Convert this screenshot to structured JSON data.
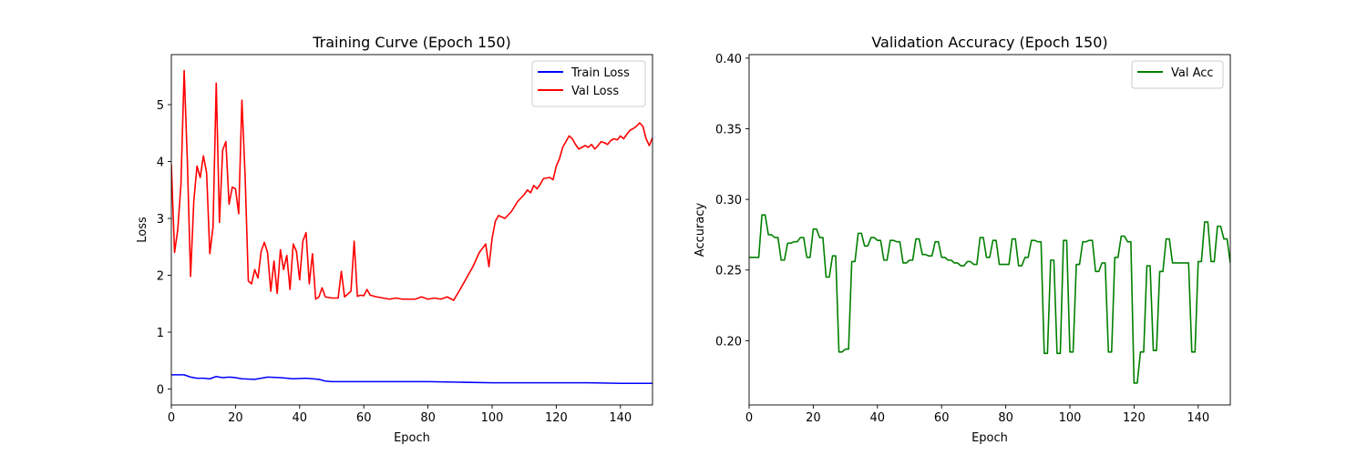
{
  "colors": {
    "train_loss": "#0000ff",
    "val_loss": "#ff0000",
    "val_acc": "#008000",
    "axes": "#000000",
    "legend_border": "#cccccc"
  },
  "chart_data": [
    {
      "type": "line",
      "title": "Training Curve (Epoch 150)",
      "xlabel": "Epoch",
      "ylabel": "Loss",
      "xlim": [
        0,
        150
      ],
      "ylim": [
        -0.28,
        5.88
      ],
      "xticks": [
        0,
        20,
        40,
        60,
        80,
        100,
        120,
        140
      ],
      "yticks": [
        0,
        1,
        2,
        3,
        4,
        5
      ],
      "grid": false,
      "legend": "top-right",
      "series": [
        {
          "name": "Train Loss",
          "color": "#0000ff",
          "x": [
            0,
            4,
            6,
            8,
            10,
            12,
            14,
            16,
            18,
            20,
            22,
            26,
            30,
            34,
            38,
            42,
            46,
            48,
            50,
            54,
            60,
            70,
            80,
            90,
            100,
            110,
            120,
            130,
            140,
            150
          ],
          "y": [
            0.25,
            0.25,
            0.21,
            0.19,
            0.19,
            0.18,
            0.22,
            0.2,
            0.21,
            0.2,
            0.18,
            0.17,
            0.21,
            0.2,
            0.18,
            0.19,
            0.17,
            0.14,
            0.13,
            0.13,
            0.13,
            0.13,
            0.13,
            0.12,
            0.11,
            0.11,
            0.11,
            0.11,
            0.1,
            0.1
          ]
        },
        {
          "name": "Val Loss",
          "color": "#ff0000",
          "x": [
            0,
            1,
            2,
            3,
            4,
            5,
            6,
            7,
            8,
            9,
            10,
            11,
            12,
            13,
            14,
            15,
            16,
            17,
            18,
            19,
            20,
            21,
            22,
            23,
            24,
            25,
            26,
            27,
            28,
            29,
            30,
            31,
            32,
            33,
            34,
            35,
            36,
            37,
            38,
            39,
            40,
            41,
            42,
            43,
            44,
            45,
            46,
            47,
            48,
            50,
            52,
            53,
            54,
            56,
            57,
            58,
            59,
            60,
            61,
            62,
            64,
            66,
            68,
            70,
            72,
            74,
            76,
            78,
            80,
            82,
            84,
            86,
            88,
            90,
            92,
            94,
            96,
            98,
            99,
            100,
            101,
            102,
            104,
            106,
            108,
            110,
            111,
            112,
            113,
            114,
            115,
            116,
            118,
            119,
            120,
            121,
            122,
            123,
            124,
            125,
            126,
            127,
            128,
            129,
            130,
            131,
            132,
            133,
            134,
            135,
            136,
            137,
            138,
            139,
            140,
            141,
            142,
            143,
            144,
            145,
            146,
            147,
            148,
            149,
            150
          ],
          "y": [
            3.95,
            2.4,
            2.8,
            3.6,
            5.6,
            4.0,
            1.98,
            3.3,
            3.92,
            3.72,
            4.1,
            3.8,
            2.38,
            2.85,
            5.38,
            2.93,
            4.2,
            4.35,
            3.25,
            3.55,
            3.52,
            3.08,
            5.08,
            3.75,
            1.9,
            1.85,
            2.1,
            1.95,
            2.42,
            2.58,
            2.4,
            1.72,
            2.25,
            1.68,
            2.45,
            2.1,
            2.35,
            1.75,
            2.55,
            2.42,
            1.92,
            2.6,
            2.75,
            1.85,
            2.38,
            1.58,
            1.62,
            1.78,
            1.62,
            1.6,
            1.6,
            2.07,
            1.62,
            1.72,
            2.6,
            1.63,
            1.65,
            1.64,
            1.75,
            1.65,
            1.62,
            1.6,
            1.58,
            1.6,
            1.58,
            1.58,
            1.58,
            1.62,
            1.58,
            1.6,
            1.58,
            1.62,
            1.56,
            1.75,
            1.95,
            2.15,
            2.4,
            2.55,
            2.15,
            2.65,
            2.95,
            3.05,
            3.0,
            3.12,
            3.3,
            3.42,
            3.5,
            3.45,
            3.58,
            3.52,
            3.6,
            3.7,
            3.72,
            3.68,
            3.92,
            4.05,
            4.25,
            4.35,
            4.45,
            4.4,
            4.3,
            4.22,
            4.25,
            4.28,
            4.25,
            4.3,
            4.22,
            4.28,
            4.35,
            4.33,
            4.3,
            4.37,
            4.4,
            4.38,
            4.45,
            4.4,
            4.48,
            4.55,
            4.58,
            4.62,
            4.68,
            4.62,
            4.4,
            4.28,
            4.42
          ]
        }
      ]
    },
    {
      "type": "line",
      "title": "Validation Accuracy (Epoch 150)",
      "xlabel": "Epoch",
      "ylabel": "Accuracy",
      "xlim": [
        0,
        150
      ],
      "ylim": [
        0.1545,
        0.4025
      ],
      "xticks": [
        0,
        20,
        40,
        60,
        80,
        100,
        120,
        140
      ],
      "yticks": [
        0.2,
        0.25,
        0.3,
        0.35,
        0.4
      ],
      "ytick_labels": [
        "0.20",
        "0.25",
        "0.30",
        "0.35",
        "0.40"
      ],
      "grid": false,
      "legend": "top-right",
      "series": [
        {
          "name": "Val Acc",
          "color": "#008000",
          "x": [
            0,
            1,
            2,
            3,
            4,
            5,
            6,
            7,
            8,
            9,
            10,
            11,
            12,
            13,
            14,
            15,
            16,
            17,
            18,
            19,
            20,
            21,
            22,
            23,
            24,
            25,
            26,
            27,
            28,
            29,
            30,
            31,
            32,
            33,
            34,
            35,
            36,
            37,
            38,
            39,
            40,
            41,
            42,
            43,
            44,
            45,
            46,
            47,
            48,
            49,
            50,
            51,
            52,
            53,
            54,
            55,
            56,
            57,
            58,
            59,
            60,
            61,
            62,
            63,
            64,
            65,
            66,
            67,
            68,
            69,
            70,
            71,
            72,
            73,
            74,
            75,
            76,
            77,
            78,
            79,
            80,
            81,
            82,
            83,
            84,
            85,
            86,
            87,
            88,
            89,
            90,
            91,
            92,
            93,
            94,
            95,
            96,
            97,
            98,
            99,
            100,
            101,
            102,
            103,
            104,
            105,
            106,
            107,
            108,
            109,
            110,
            111,
            112,
            113,
            114,
            115,
            116,
            117,
            118,
            119,
            120,
            121,
            122,
            123,
            124,
            125,
            126,
            127,
            128,
            129,
            130,
            131,
            132,
            133,
            134,
            135,
            136,
            137,
            138,
            139,
            140,
            141,
            142,
            143,
            144,
            145,
            146,
            147,
            148,
            149,
            150
          ],
          "y": [
            0.259,
            0.259,
            0.259,
            0.259,
            0.289,
            0.289,
            0.275,
            0.275,
            0.273,
            0.273,
            0.257,
            0.257,
            0.269,
            0.269,
            0.27,
            0.27,
            0.273,
            0.273,
            0.259,
            0.259,
            0.279,
            0.279,
            0.273,
            0.273,
            0.245,
            0.245,
            0.26,
            0.26,
            0.192,
            0.192,
            0.194,
            0.194,
            0.256,
            0.256,
            0.276,
            0.276,
            0.267,
            0.267,
            0.273,
            0.273,
            0.271,
            0.271,
            0.257,
            0.257,
            0.271,
            0.271,
            0.27,
            0.27,
            0.255,
            0.255,
            0.257,
            0.257,
            0.272,
            0.272,
            0.261,
            0.261,
            0.26,
            0.26,
            0.27,
            0.27,
            0.259,
            0.259,
            0.257,
            0.257,
            0.255,
            0.255,
            0.253,
            0.253,
            0.256,
            0.256,
            0.254,
            0.254,
            0.273,
            0.273,
            0.259,
            0.259,
            0.271,
            0.271,
            0.254,
            0.254,
            0.254,
            0.254,
            0.272,
            0.272,
            0.253,
            0.253,
            0.259,
            0.259,
            0.271,
            0.271,
            0.27,
            0.27,
            0.191,
            0.191,
            0.257,
            0.257,
            0.191,
            0.191,
            0.271,
            0.271,
            0.192,
            0.192,
            0.254,
            0.254,
            0.27,
            0.27,
            0.271,
            0.271,
            0.249,
            0.249,
            0.255,
            0.255,
            0.192,
            0.192,
            0.259,
            0.259,
            0.274,
            0.274,
            0.27,
            0.27,
            0.17,
            0.17,
            0.192,
            0.192,
            0.253,
            0.253,
            0.193,
            0.193,
            0.249,
            0.249,
            0.272,
            0.272,
            0.255,
            0.255,
            0.255,
            0.255,
            0.255,
            0.255,
            0.192,
            0.192,
            0.256,
            0.256,
            0.284,
            0.284,
            0.256,
            0.256,
            0.281,
            0.281,
            0.272,
            0.272,
            0.255
          ]
        }
      ]
    }
  ]
}
